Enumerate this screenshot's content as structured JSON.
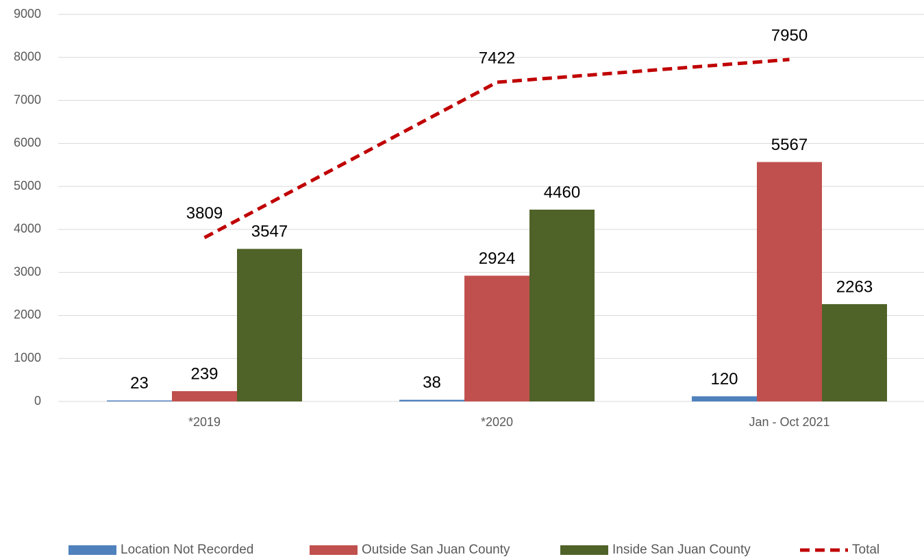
{
  "chart_data": {
    "type": "bar",
    "categories": [
      "*2019",
      "*2020",
      "Jan - Oct 2021"
    ],
    "series": [
      {
        "name": "Location Not Recorded",
        "color": "#4f81bd",
        "values": [
          23,
          38,
          120
        ]
      },
      {
        "name": "Outside San Juan County",
        "color": "#c0504d",
        "values": [
          239,
          2924,
          5567
        ]
      },
      {
        "name": "Inside San Juan County",
        "color": "#4f6228",
        "values": [
          3547,
          4460,
          2263
        ]
      },
      {
        "name": "Total",
        "color": "#c00000",
        "type": "line",
        "dashed": true,
        "values": [
          3809,
          7422,
          7950
        ]
      }
    ],
    "ylim": [
      0,
      9000
    ],
    "yticks": [
      0,
      1000,
      2000,
      3000,
      4000,
      5000,
      6000,
      7000,
      8000,
      9000
    ],
    "grid": true,
    "legend": "bottom"
  }
}
